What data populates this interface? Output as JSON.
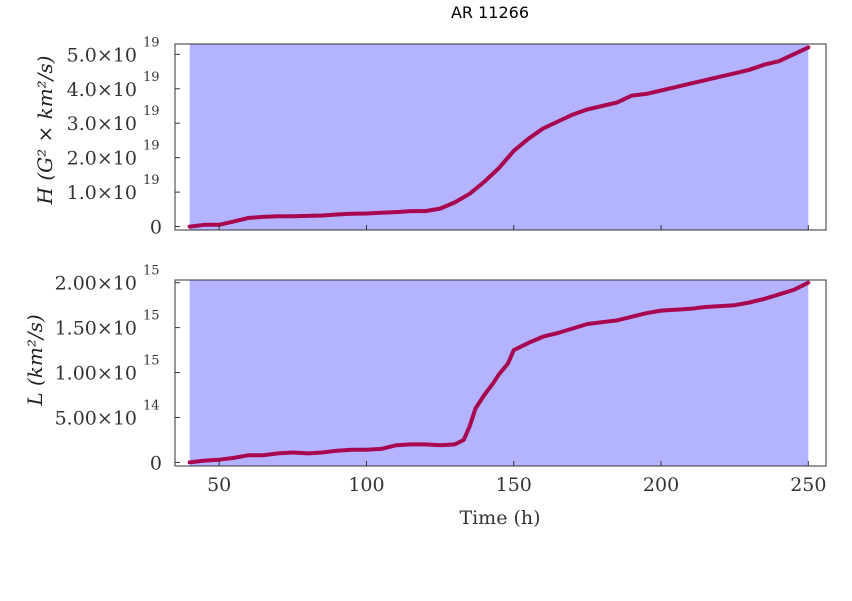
{
  "chart_data": [
    {
      "type": "line",
      "title": "AR 11266",
      "ylabel": "H (G² × km²/s)",
      "xlim": [
        35,
        256
      ],
      "ylim": [
        -1e+18,
        5.3e+19
      ],
      "shade_range": [
        40,
        250
      ],
      "shade_color": "#b3b3ff",
      "line_color": "#a8074f",
      "yticks": [
        {
          "value": 0,
          "mantissa": "0",
          "exp": ""
        },
        {
          "value": 1e+19,
          "mantissa": "1.0×10",
          "exp": "19"
        },
        {
          "value": 2e+19,
          "mantissa": "2.0×10",
          "exp": "19"
        },
        {
          "value": 3e+19,
          "mantissa": "3.0×10",
          "exp": "19"
        },
        {
          "value": 4e+19,
          "mantissa": "4.0×10",
          "exp": "19"
        },
        {
          "value": 5e+19,
          "mantissa": "5.0×10",
          "exp": "19"
        }
      ],
      "xticks": [
        50,
        100,
        150,
        200,
        250
      ],
      "x": [
        40,
        45,
        50,
        55,
        60,
        65,
        70,
        75,
        80,
        85,
        90,
        95,
        100,
        105,
        110,
        115,
        120,
        125,
        130,
        135,
        140,
        145,
        150,
        155,
        160,
        165,
        170,
        175,
        180,
        185,
        190,
        195,
        200,
        205,
        210,
        215,
        220,
        225,
        230,
        235,
        240,
        245,
        250
      ],
      "y": [
        0.0,
        5e+17,
        5e+17,
        1.5e+18,
        2.5e+18,
        2.8e+18,
        3e+18,
        3e+18,
        3.1e+18,
        3.2e+18,
        3.5e+18,
        3.7e+18,
        3.8e+18,
        4e+18,
        4.2e+18,
        4.5e+18,
        4.5e+18,
        5.2e+18,
        7e+18,
        9.5e+18,
        1.3e+19,
        1.7e+19,
        2.2e+19,
        2.55e+19,
        2.85e+19,
        3.05e+19,
        3.25e+19,
        3.4e+19,
        3.5e+19,
        3.6e+19,
        3.8e+19,
        3.85e+19,
        3.95e+19,
        4.05e+19,
        4.15e+19,
        4.25e+19,
        4.35e+19,
        4.45e+19,
        4.55e+19,
        4.7e+19,
        4.8e+19,
        5e+19,
        5.2e+19
      ]
    },
    {
      "type": "line",
      "ylabel": "L (km²/s)",
      "xlabel": "Time (h)",
      "xlim": [
        35,
        256
      ],
      "ylim": [
        -40000000000000.0,
        2030000000000000.0
      ],
      "shade_range": [
        40,
        250
      ],
      "shade_color": "#b3b3ff",
      "line_color": "#a8074f",
      "yticks": [
        {
          "value": 0,
          "mantissa": "0",
          "exp": ""
        },
        {
          "value": 500000000000000.0,
          "mantissa": "5.00×10",
          "exp": "14"
        },
        {
          "value": 1000000000000000.0,
          "mantissa": "1.00×10",
          "exp": "15"
        },
        {
          "value": 1500000000000000.0,
          "mantissa": "1.50×10",
          "exp": "15"
        },
        {
          "value": 2000000000000000.0,
          "mantissa": "2.00×10",
          "exp": "15"
        }
      ],
      "xticks": [
        50,
        100,
        150,
        200,
        250
      ],
      "x": [
        40,
        45,
        50,
        55,
        60,
        65,
        70,
        75,
        80,
        85,
        90,
        95,
        100,
        105,
        110,
        115,
        120,
        125,
        130,
        133,
        135,
        137,
        140,
        143,
        145,
        148,
        150,
        155,
        160,
        165,
        170,
        175,
        180,
        185,
        190,
        195,
        200,
        205,
        210,
        215,
        220,
        225,
        230,
        235,
        240,
        245,
        250
      ],
      "y": [
        0.0,
        20000000000000.0,
        30000000000000.0,
        50000000000000.0,
        80000000000000.0,
        80000000000000.0,
        100000000000000.0,
        110000000000000.0,
        100000000000000.0,
        110000000000000.0,
        130000000000000.0,
        140000000000000.0,
        140000000000000.0,
        150000000000000.0,
        190000000000000.0,
        200000000000000.0,
        200000000000000.0,
        190000000000000.0,
        200000000000000.0,
        250000000000000.0,
        400000000000000.0,
        600000000000000.0,
        750000000000000.0,
        880000000000000.0,
        980000000000000.0,
        1100000000000000.0,
        1250000000000000.0,
        1330000000000000.0,
        1400000000000000.0,
        1440000000000000.0,
        1490000000000000.0,
        1540000000000000.0,
        1560000000000000.0,
        1580000000000000.0,
        1620000000000000.0,
        1660000000000000.0,
        1690000000000000.0,
        1700000000000000.0,
        1710000000000000.0,
        1730000000000000.0,
        1740000000000000.0,
        1750000000000000.0,
        1780000000000000.0,
        1820000000000000.0,
        1870000000000000.0,
        1920000000000000.0,
        2000000000000000.0
      ]
    }
  ]
}
